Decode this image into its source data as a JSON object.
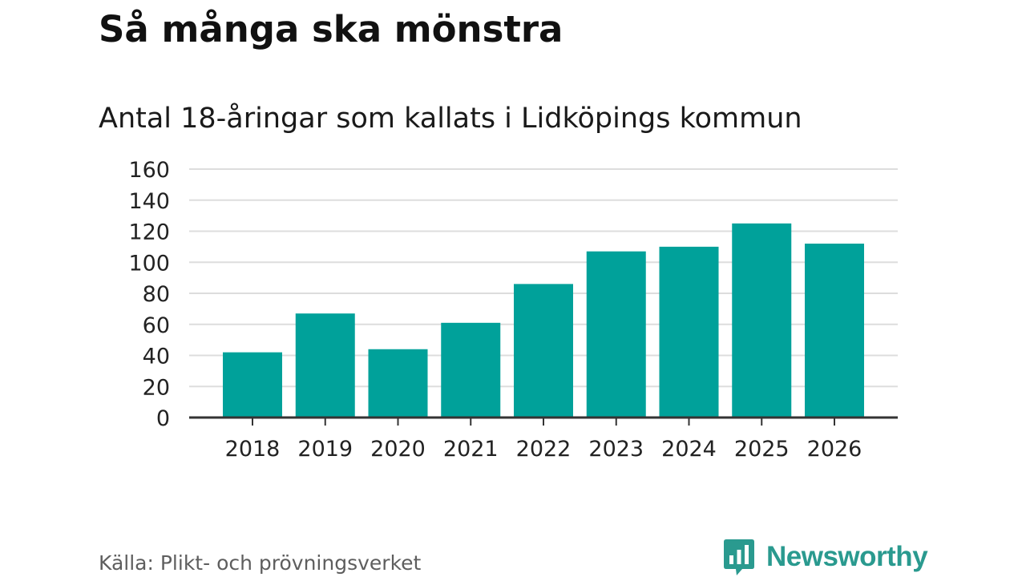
{
  "title": "Så många ska mönstra",
  "subtitle": "Antal 18-åringar som kallats i Lidköpings kommun",
  "source": "Källa: Plikt- och prövningsverket",
  "brand": {
    "name": "Newsworthy",
    "logo_icon": "bar-chart-speech-bubble-icon",
    "color": "#2a9a8f"
  },
  "chart_data": {
    "type": "bar",
    "categories": [
      "2018",
      "2019",
      "2020",
      "2021",
      "2022",
      "2023",
      "2024",
      "2025",
      "2026"
    ],
    "values": [
      42,
      67,
      44,
      61,
      86,
      107,
      110,
      125,
      112
    ],
    "ylim": [
      0,
      160
    ],
    "yticks": [
      0,
      20,
      40,
      60,
      80,
      100,
      120,
      140,
      160
    ],
    "grid": true,
    "bar_color": "#00a19a",
    "grid_color": "#dddddd",
    "axis_color": "#333333"
  }
}
